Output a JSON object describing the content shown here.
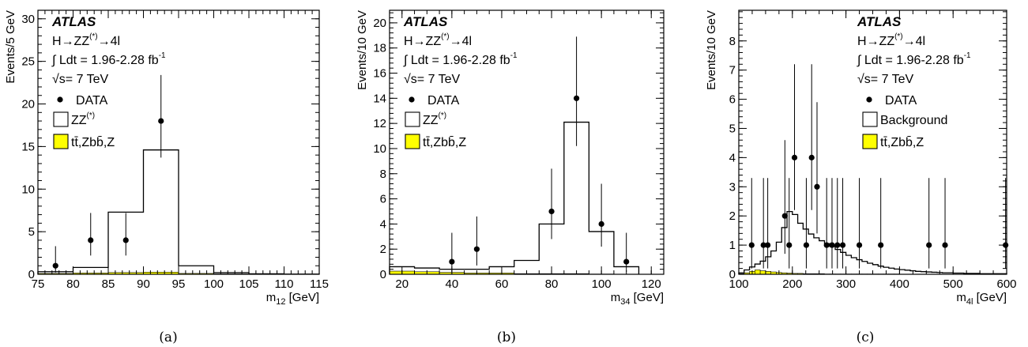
{
  "chart_data": [
    {
      "type": "histogram",
      "caption": "(a)",
      "xlabel": "m",
      "xlabel_sub": "12",
      "xlabel_unit": "[GeV]",
      "ylabel": "Events/5 GeV",
      "xlim": [
        75,
        115
      ],
      "ylim": [
        0,
        31
      ],
      "xticks": [
        75,
        80,
        85,
        90,
        95,
        100,
        105,
        110,
        115
      ],
      "yticks": [
        0,
        5,
        10,
        15,
        20,
        25,
        30
      ],
      "legend": {
        "data": "DATA",
        "bkg_main": "ZZ",
        "bkg_main_sup": "(*)",
        "bkg_other": "tt̄,Zbb̄,Z"
      },
      "background_edges": [
        75,
        80,
        85,
        90,
        95,
        100,
        105,
        110,
        115
      ],
      "background_total": [
        0.3,
        0.8,
        7.3,
        14.6,
        1.0,
        0.2,
        0.05,
        0.02
      ],
      "background_other": [
        0.1,
        0.15,
        0.2,
        0.25,
        0.1,
        0.05,
        0.02,
        0.01
      ],
      "data_points": [
        {
          "x": 77.5,
          "y": 1,
          "lo": 0.2,
          "hi": 3.3
        },
        {
          "x": 82.5,
          "y": 4,
          "lo": 2.2,
          "hi": 7.2
        },
        {
          "x": 87.5,
          "y": 4,
          "lo": 2.2,
          "hi": 7.2
        },
        {
          "x": 92.5,
          "y": 18,
          "lo": 13.7,
          "hi": 23.4
        }
      ]
    },
    {
      "type": "histogram",
      "caption": "(b)",
      "xlabel": "m",
      "xlabel_sub": "34",
      "xlabel_unit": "[GeV]",
      "ylabel": "Events/10 GeV",
      "xlim": [
        15,
        125
      ],
      "ylim": [
        0,
        21
      ],
      "xticks": [
        20,
        40,
        60,
        80,
        100,
        120
      ],
      "yticks": [
        0,
        2,
        4,
        6,
        8,
        10,
        12,
        14,
        16,
        18,
        20
      ],
      "legend": {
        "data": "DATA",
        "bkg_main": "ZZ",
        "bkg_main_sup": "(*)",
        "bkg_other": "tt̄,Zbb̄,Z"
      },
      "background_edges": [
        15,
        25,
        35,
        45,
        55,
        65,
        75,
        85,
        95,
        105,
        115
      ],
      "background_total": [
        0.6,
        0.5,
        0.4,
        0.4,
        0.6,
        1.1,
        4.0,
        12.1,
        3.4,
        0.6
      ],
      "background_other": [
        0.25,
        0.2,
        0.15,
        0.1,
        0.1,
        0.05,
        0.05,
        0.05,
        0.02,
        0.01
      ],
      "data_points": [
        {
          "x": 40,
          "y": 1,
          "lo": 0.2,
          "hi": 3.3
        },
        {
          "x": 50,
          "y": 2,
          "lo": 0.7,
          "hi": 4.6
        },
        {
          "x": 80,
          "y": 5,
          "lo": 2.8,
          "hi": 8.4
        },
        {
          "x": 90,
          "y": 14,
          "lo": 10.2,
          "hi": 18.9
        },
        {
          "x": 100,
          "y": 4,
          "lo": 2.2,
          "hi": 7.2
        },
        {
          "x": 110,
          "y": 1,
          "lo": 0.2,
          "hi": 3.3
        }
      ]
    },
    {
      "type": "histogram",
      "caption": "(c)",
      "xlabel": "m",
      "xlabel_sub": "4l",
      "xlabel_unit": "[GeV]",
      "ylabel": "Events/10 GeV",
      "xlim": [
        100,
        600
      ],
      "ylim": [
        0,
        9.05
      ],
      "xticks": [
        100,
        200,
        300,
        400,
        500,
        600
      ],
      "yticks": [
        0,
        1,
        2,
        3,
        4,
        5,
        6,
        7,
        8
      ],
      "legend": {
        "data": "DATA",
        "bkg_main": "Background",
        "bkg_main_sup": "",
        "bkg_other": "tt̄,Zbb̄,Z"
      },
      "background_edges": [
        100,
        110,
        120,
        130,
        140,
        150,
        160,
        170,
        180,
        190,
        200,
        210,
        220,
        230,
        240,
        250,
        260,
        270,
        280,
        290,
        300,
        310,
        320,
        330,
        340,
        350,
        360,
        370,
        380,
        390,
        400,
        410,
        420,
        430,
        440,
        450,
        460,
        470,
        480,
        490,
        500,
        510,
        520,
        530,
        540,
        550,
        560,
        570,
        580,
        590,
        600
      ],
      "background_total": [
        0.05,
        0.15,
        0.25,
        0.35,
        0.45,
        0.6,
        0.8,
        1.1,
        1.6,
        2.15,
        2.05,
        1.75,
        1.55,
        1.38,
        1.25,
        1.15,
        1.05,
        0.95,
        0.85,
        0.75,
        0.65,
        0.57,
        0.5,
        0.44,
        0.38,
        0.33,
        0.28,
        0.24,
        0.21,
        0.18,
        0.16,
        0.14,
        0.12,
        0.1,
        0.09,
        0.08,
        0.07,
        0.06,
        0.05,
        0.05,
        0.04,
        0.04,
        0.03,
        0.03,
        0.03,
        0.02,
        0.02,
        0.02,
        0.02,
        0.02
      ],
      "background_other": [
        0.02,
        0.05,
        0.1,
        0.15,
        0.12,
        0.1,
        0.08,
        0.06,
        0.05,
        0.04,
        0.03,
        0.03,
        0.02,
        0.02,
        0.02,
        0.02,
        0.01,
        0.01,
        0.01,
        0.01,
        0.01,
        0.01,
        0.01,
        0.01,
        0.01,
        0.01,
        0.01,
        0.01,
        0.01,
        0.01,
        0,
        0,
        0,
        0,
        0,
        0,
        0,
        0,
        0,
        0,
        0,
        0,
        0,
        0,
        0,
        0,
        0,
        0,
        0,
        0
      ],
      "data_points": [
        {
          "x": 124,
          "y": 1,
          "lo": 0.2,
          "hi": 3.3
        },
        {
          "x": 146,
          "y": 1,
          "lo": 0.2,
          "hi": 3.3
        },
        {
          "x": 154,
          "y": 1,
          "lo": 0.2,
          "hi": 3.3
        },
        {
          "x": 186,
          "y": 2,
          "lo": 0.7,
          "hi": 4.6
        },
        {
          "x": 194,
          "y": 1,
          "lo": 0.2,
          "hi": 3.3
        },
        {
          "x": 204,
          "y": 4,
          "lo": 2.2,
          "hi": 7.2
        },
        {
          "x": 226,
          "y": 1,
          "lo": 0.2,
          "hi": 3.3
        },
        {
          "x": 236,
          "y": 4,
          "lo": 2.2,
          "hi": 7.2
        },
        {
          "x": 246,
          "y": 3,
          "lo": 1.4,
          "hi": 5.9
        },
        {
          "x": 264,
          "y": 1,
          "lo": 0.2,
          "hi": 3.3
        },
        {
          "x": 274,
          "y": 1,
          "lo": 0.2,
          "hi": 3.3
        },
        {
          "x": 284,
          "y": 1,
          "lo": 0.2,
          "hi": 3.3
        },
        {
          "x": 294,
          "y": 1,
          "lo": 0.2,
          "hi": 3.3
        },
        {
          "x": 325,
          "y": 1,
          "lo": 0.2,
          "hi": 3.3
        },
        {
          "x": 365,
          "y": 1,
          "lo": 0.2,
          "hi": 3.3
        },
        {
          "x": 455,
          "y": 1,
          "lo": 0.2,
          "hi": 3.3
        },
        {
          "x": 485,
          "y": 1,
          "lo": 0.2,
          "hi": 3.3
        },
        {
          "x": 598,
          "y": 1,
          "lo": 0.2,
          "hi": 3.3
        }
      ]
    }
  ],
  "annotations": {
    "experiment": "ATLAS",
    "process": "H→ZZ",
    "process_sup": "(*)",
    "process_tail": "→4l",
    "lumi": "∫ Ldt = 1.96-2.28 fb",
    "lumi_sup": "-1",
    "energy": "√s= 7 TeV"
  },
  "colors": {
    "other_bkg_fill": "#ffff00",
    "line": "#000000",
    "marker": "#000000"
  }
}
